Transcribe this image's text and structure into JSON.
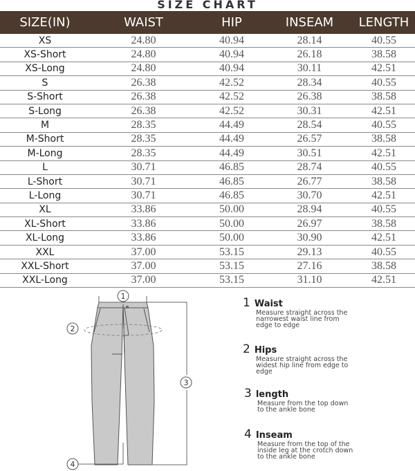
{
  "title": "SIZE CHART",
  "table": {
    "headers": [
      "SIZE(IN)",
      "WAIST",
      "HIP",
      "INSEAM",
      "LENGTH"
    ],
    "rows": [
      [
        "XS",
        "24.80",
        "40.94",
        "28.14",
        "40.55"
      ],
      [
        "XS-Short",
        "24.80",
        "40.94",
        "26.18",
        "38.58"
      ],
      [
        "XS-Long",
        "24.80",
        "40.94",
        "30.11",
        "42.51"
      ],
      [
        "S",
        "26.38",
        "42.52",
        "28.34",
        "40.55"
      ],
      [
        "S-Short",
        "26.38",
        "42.52",
        "26.38",
        "38.58"
      ],
      [
        "S-Long",
        "26.38",
        "42.52",
        "30.31",
        "42.51"
      ],
      [
        "M",
        "28.35",
        "44.49",
        "28.54",
        "40.55"
      ],
      [
        "M-Short",
        "28.35",
        "44.49",
        "26.57",
        "38.58"
      ],
      [
        "M-Long",
        "28.35",
        "44.49",
        "30.51",
        "42.51"
      ],
      [
        "L",
        "30.71",
        "46.85",
        "28.74",
        "40.55"
      ],
      [
        "L-Short",
        "30.71",
        "46.85",
        "26.77",
        "38.58"
      ],
      [
        "L-Long",
        "30.71",
        "46.85",
        "30.70",
        "42.51"
      ],
      [
        "XL",
        "33.86",
        "50.00",
        "28.94",
        "40.55"
      ],
      [
        "XL-Short",
        "33.86",
        "50.00",
        "26.97",
        "38.58"
      ],
      [
        "XL-Long",
        "33.86",
        "50.00",
        "30.90",
        "42.51"
      ],
      [
        "XXL",
        "37.00",
        "53.15",
        "29.13",
        "40.55"
      ],
      [
        "XXL-Short",
        "37.00",
        "53.15",
        "27.16",
        "38.58"
      ],
      [
        "XXL-Long",
        "37.00",
        "53.15",
        "31.10",
        "42.51"
      ]
    ]
  },
  "colors": {
    "header_bg": "#4b3a2d",
    "pants_fill": "#c9c9c9"
  },
  "diagram": {
    "markers": [
      "1",
      "2",
      "3",
      "4"
    ]
  },
  "legend": [
    {
      "num": "1",
      "label": "Waist",
      "desc": "Measure straight across the narrowest waist line from edge to edge"
    },
    {
      "num": "2",
      "label": "Hips",
      "desc": "Measure straight across the widest hip line from edge to edge"
    },
    {
      "num": "3",
      "label": "length",
      "desc": "Measure from the top down to the ankle bone"
    },
    {
      "num": "4",
      "label": "Inseam",
      "desc": "Measure from the top of the inside leg at the crotch down to the ankle bone"
    }
  ]
}
